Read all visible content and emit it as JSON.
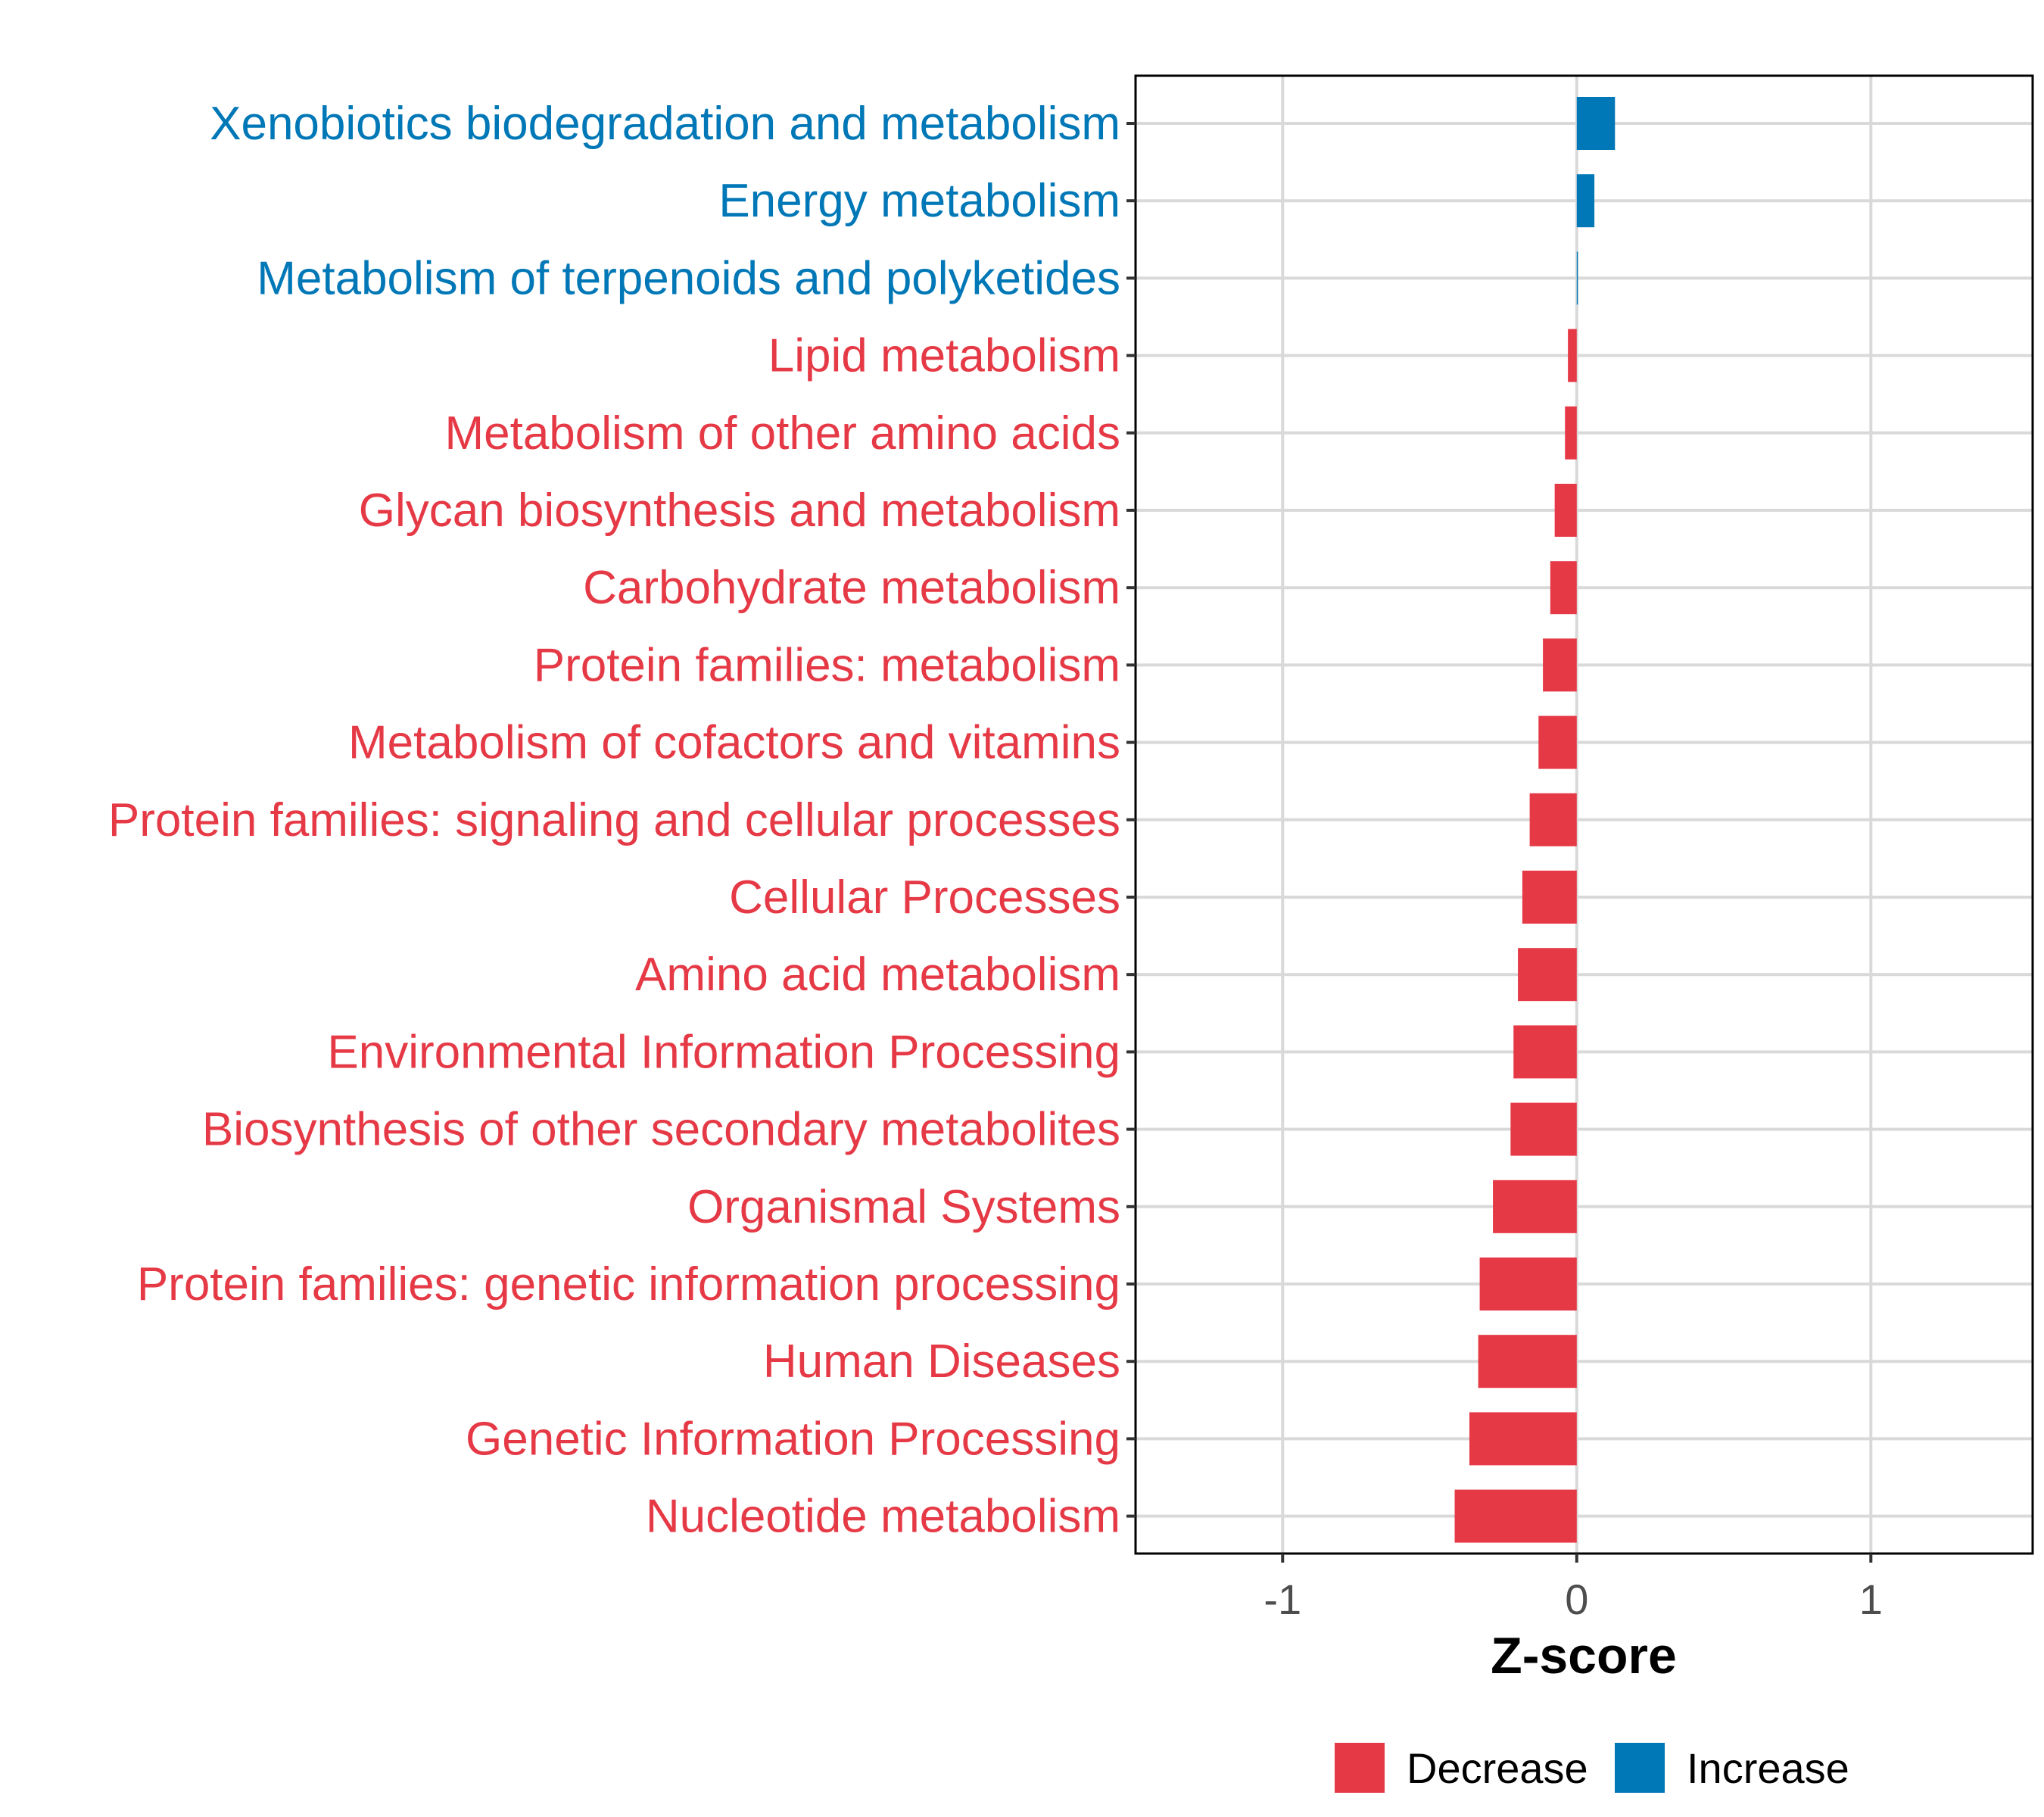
{
  "chart_data": {
    "type": "bar",
    "orientation": "horizontal",
    "xlabel": "Z-score",
    "ylabel": "",
    "xlim": [
      -1.5,
      1.55
    ],
    "xticks": [
      -1,
      0,
      1
    ],
    "xtick_labels": [
      "-1",
      "0",
      "1"
    ],
    "grid": true,
    "legend_position": "bottom",
    "legend": [
      {
        "label": "Decrease",
        "color": "#E63946"
      },
      {
        "label": "Increase",
        "color": "#0077B6"
      }
    ],
    "categories": [
      "Xenobiotics biodegradation and metabolism",
      "Energy metabolism",
      "Metabolism of terpenoids and polyketides",
      "Lipid metabolism",
      "Metabolism of other amino acids",
      "Glycan biosynthesis and metabolism",
      "Carbohydrate metabolism",
      "Protein families: metabolism",
      "Metabolism of cofactors and vitamins",
      "Protein families: signaling and cellular processes",
      "Cellular Processes",
      "Amino acid metabolism",
      "Environmental Information Processing",
      "Biosynthesis of other secondary metabolites",
      "Organismal Systems",
      "Protein families: genetic information processing",
      "Human Diseases",
      "Genetic Information Processing",
      "Nucleotide metabolism"
    ],
    "values": [
      0.13,
      0.06,
      0.003,
      -0.03,
      -0.04,
      -0.075,
      -0.09,
      -0.115,
      -0.13,
      -0.16,
      -0.185,
      -0.2,
      -0.215,
      -0.225,
      -0.285,
      -0.33,
      -0.335,
      -0.365,
      -0.415
    ],
    "groups": [
      "Increase",
      "Increase",
      "Increase",
      "Decrease",
      "Decrease",
      "Decrease",
      "Decrease",
      "Decrease",
      "Decrease",
      "Decrease",
      "Decrease",
      "Decrease",
      "Decrease",
      "Decrease",
      "Decrease",
      "Decrease",
      "Decrease",
      "Decrease",
      "Decrease"
    ]
  }
}
